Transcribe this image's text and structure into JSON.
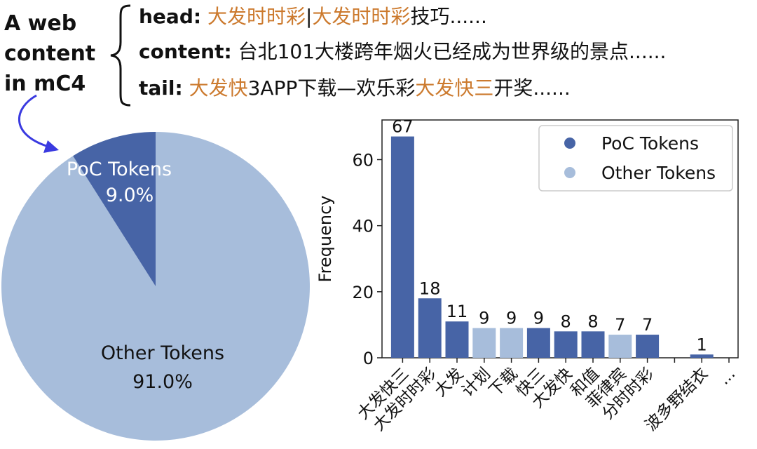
{
  "colors": {
    "poc": "#4764a6",
    "other": "#a7bddb",
    "highlight": "#cc7a2e",
    "arrow": "#3a3ae0"
  },
  "annotation": {
    "label": [
      "A web",
      "content",
      "in mC4"
    ],
    "head": {
      "key": "head:",
      "segments": [
        {
          "text": "大发时时彩",
          "highlight": true
        },
        {
          "text": "|",
          "highlight": false
        },
        {
          "text": "大发时时彩",
          "highlight": true
        },
        {
          "text": "技巧......",
          "highlight": false
        }
      ]
    },
    "content": {
      "key": "content:",
      "segments": [
        {
          "text": "台北101大楼跨年烟火已经成为世界级的景点......",
          "highlight": false
        }
      ]
    },
    "tail": {
      "key": "tail:",
      "segments": [
        {
          "text": "大发快",
          "highlight": true
        },
        {
          "text": "3APP下载—欢乐彩",
          "highlight": false
        },
        {
          "text": "大发快三",
          "highlight": true
        },
        {
          "text": "开奖......",
          "highlight": false
        }
      ]
    }
  },
  "chart_data": [
    {
      "type": "pie",
      "slices": [
        {
          "label": "PoC Tokens",
          "value": 9.0,
          "display": "9.0%",
          "color": "#4764a6"
        },
        {
          "label": "Other Tokens",
          "value": 91.0,
          "display": "91.0%",
          "color": "#a7bddb"
        }
      ]
    },
    {
      "type": "bar",
      "ylabel": "Frequency",
      "xlabel": "",
      "ylim": [
        0,
        72
      ],
      "yticks": [
        0,
        20,
        40,
        60
      ],
      "legend": {
        "position": "top-right",
        "entries": [
          "PoC Tokens",
          "Other Tokens"
        ]
      },
      "categories": [
        "大发快三",
        "大发时时彩",
        "大发",
        "计划",
        "下载",
        "快三",
        "大发快",
        "和值",
        "菲律宾",
        "分时时彩",
        "",
        "波多野结衣",
        "..."
      ],
      "values": [
        67,
        18,
        11,
        9,
        9,
        9,
        8,
        8,
        7,
        7,
        null,
        1,
        null
      ],
      "series_type": [
        "poc",
        "poc",
        "poc",
        "other",
        "other",
        "poc",
        "poc",
        "poc",
        "other",
        "poc",
        null,
        "poc",
        null
      ]
    }
  ]
}
